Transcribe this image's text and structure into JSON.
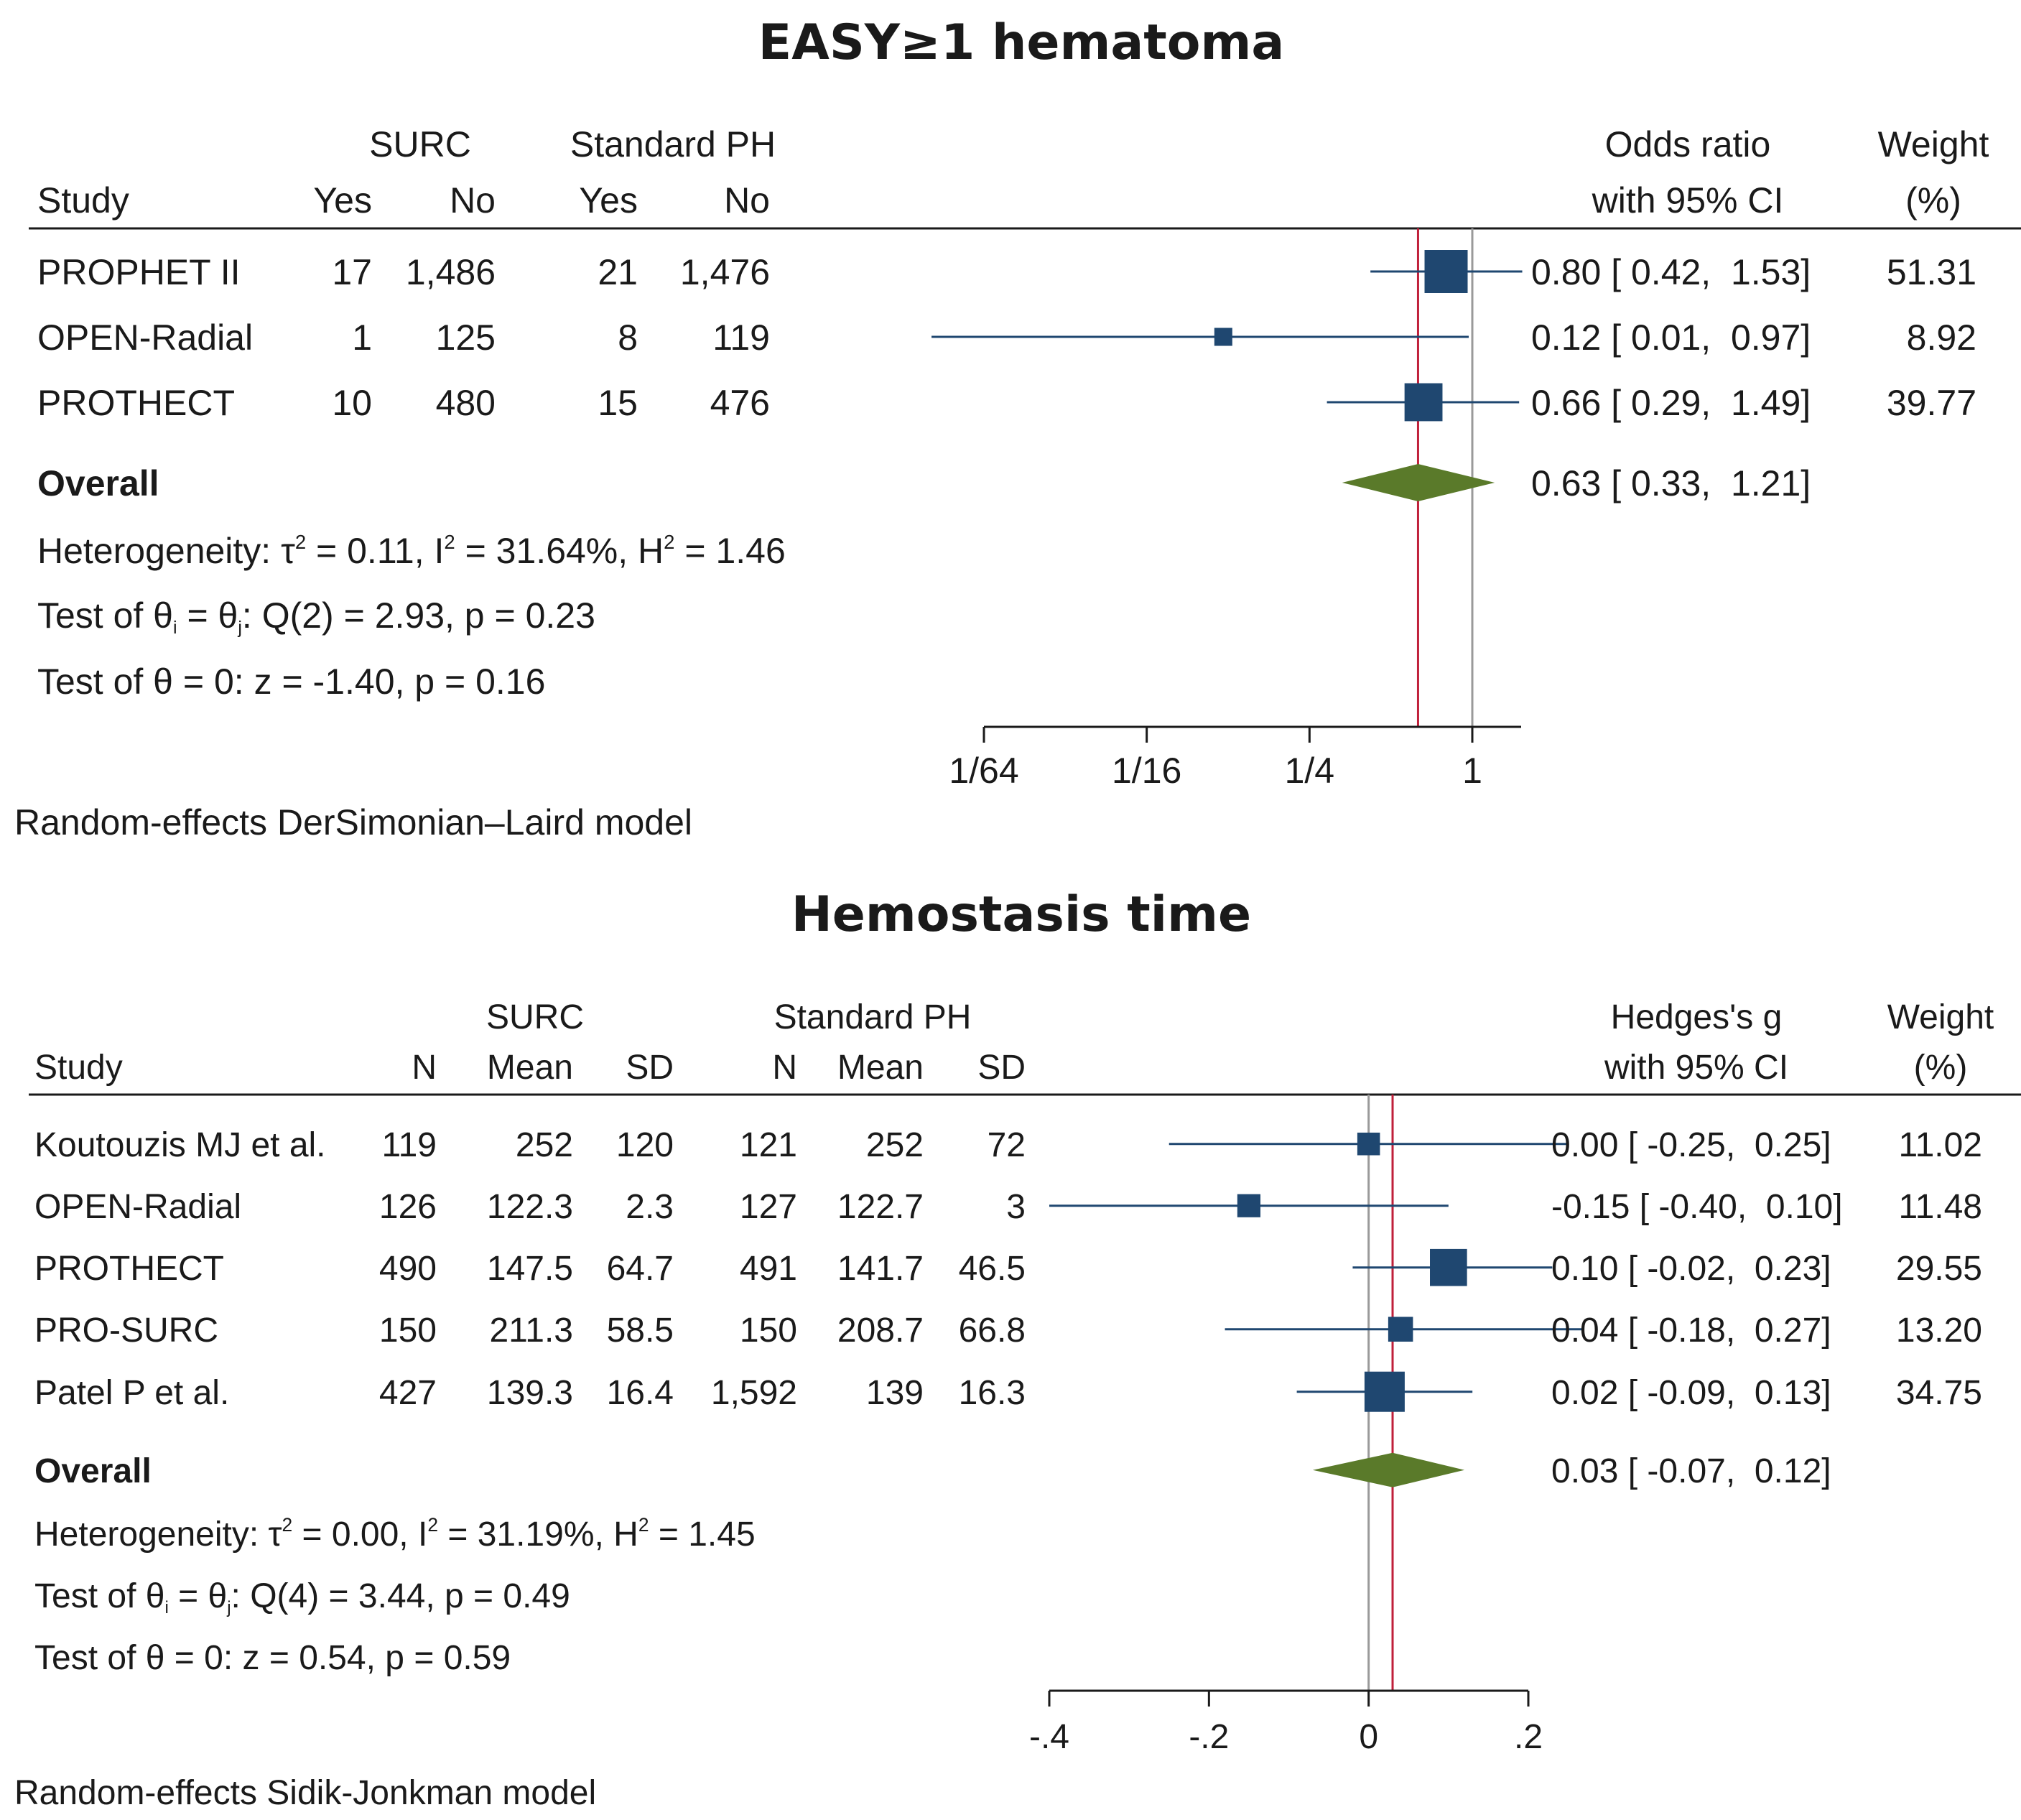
{
  "chart_data": [
    {
      "type": "forest",
      "title": "EASY≥1 hematoma",
      "group_headers": [
        "SURC",
        "Standard PH"
      ],
      "column_headers": [
        "Study",
        "Yes",
        "No",
        "Yes",
        "No"
      ],
      "effect_header": [
        "Odds ratio",
        "with 95% CI"
      ],
      "weight_header": [
        "Weight",
        "(%)"
      ],
      "scale": "log2",
      "xlim": [
        0.0139,
        1.14
      ],
      "xticks": [
        {
          "value": 0.015625,
          "label": "1/64"
        },
        {
          "value": 0.0625,
          "label": "1/16"
        },
        {
          "value": 0.25,
          "label": "1/4"
        },
        {
          "value": 1,
          "label": "1"
        }
      ],
      "null_value": 1,
      "studies": [
        {
          "name": "PROPHET II",
          "cells": [
            "17",
            "1,486",
            "21",
            "1,476"
          ],
          "est": 0.8,
          "lo": 0.42,
          "hi": 1.53,
          "ci_text": "0.80 [ 0.42,  1.53]",
          "weight": 51.31,
          "weight_text": "51.31"
        },
        {
          "name": "OPEN-Radial",
          "cells": [
            "1",
            "125",
            "8",
            "119"
          ],
          "est": 0.12,
          "lo": 0.01,
          "hi": 0.97,
          "ci_text": "0.12 [ 0.01,  0.97]",
          "weight": 8.92,
          "weight_text": "8.92"
        },
        {
          "name": "PROTHECT",
          "cells": [
            "10",
            "480",
            "15",
            "476"
          ],
          "est": 0.66,
          "lo": 0.29,
          "hi": 1.49,
          "ci_text": "0.66 [ 0.29,  1.49]",
          "weight": 39.77,
          "weight_text": "39.77"
        }
      ],
      "overall": {
        "label": "Overall",
        "est": 0.63,
        "lo": 0.33,
        "hi": 1.21,
        "ci_text": "0.63 [ 0.33,  1.21]"
      },
      "heterogeneity": {
        "prefix": "Heterogeneity: τ",
        "tau2": " = 0.11, I",
        "i2": " = 31.64%, H",
        "h2": " = 1.46",
        "sup": "2"
      },
      "test_q": {
        "a": "Test of θ",
        "sub_i": "i",
        "b": " = θ",
        "sub_j": "j",
        "c": ": Q(2) = 2.93, p = 0.23"
      },
      "test_z": "Test of θ = 0: z = -1.40, p = 0.16",
      "model": "Random-effects DerSimonian–Laird model"
    },
    {
      "type": "forest",
      "title": "Hemostasis time",
      "group_headers": [
        "SURC",
        "Standard PH"
      ],
      "column_headers": [
        "Study",
        "N",
        "Mean",
        "SD",
        "N",
        "Mean",
        "SD"
      ],
      "effect_header": [
        "Hedges's g",
        "with 95% CI"
      ],
      "weight_header": [
        "Weight",
        "(%)"
      ],
      "scale": "linear",
      "xlim": [
        -0.4,
        0.27
      ],
      "xticks": [
        {
          "value": -0.4,
          "label": "-.4"
        },
        {
          "value": -0.2,
          "label": "-.2"
        },
        {
          "value": 0,
          "label": "0"
        },
        {
          "value": 0.2,
          "label": ".2"
        }
      ],
      "null_value": 0,
      "studies": [
        {
          "name": "Koutouzis MJ et al.",
          "cells": [
            "119",
            "252",
            "120",
            "121",
            "252",
            "72"
          ],
          "est": 0.0,
          "lo": -0.25,
          "hi": 0.25,
          "ci_text": "0.00 [ -0.25,  0.25]",
          "weight": 11.02,
          "weight_text": "11.02"
        },
        {
          "name": "OPEN-Radial",
          "cells": [
            "126",
            "122.3",
            "2.3",
            "127",
            "122.7",
            "3"
          ],
          "est": -0.15,
          "lo": -0.4,
          "hi": 0.1,
          "ci_text": "-0.15 [ -0.40,  0.10]",
          "weight": 11.48,
          "weight_text": "11.48"
        },
        {
          "name": "PROTHECT",
          "cells": [
            "490",
            "147.5",
            "64.7",
            "491",
            "141.7",
            "46.5"
          ],
          "est": 0.1,
          "lo": -0.02,
          "hi": 0.23,
          "ci_text": "0.10 [ -0.02,  0.23]",
          "weight": 29.55,
          "weight_text": "29.55"
        },
        {
          "name": "PRO-SURC",
          "cells": [
            "150",
            "211.3",
            "58.5",
            "150",
            "208.7",
            "66.8"
          ],
          "est": 0.04,
          "lo": -0.18,
          "hi": 0.27,
          "ci_text": "0.04 [ -0.18,  0.27]",
          "weight": 13.2,
          "weight_text": "13.20"
        },
        {
          "name": "Patel P et al.",
          "cells": [
            "427",
            "139.3",
            "16.4",
            "1,592",
            "139",
            "16.3"
          ],
          "est": 0.02,
          "lo": -0.09,
          "hi": 0.13,
          "ci_text": "0.02 [ -0.09,  0.13]",
          "weight": 34.75,
          "weight_text": "34.75"
        }
      ],
      "overall": {
        "label": "Overall",
        "est": 0.03,
        "lo": -0.07,
        "hi": 0.12,
        "ci_text": "0.03 [ -0.07,  0.12]"
      },
      "heterogeneity": {
        "prefix": "Heterogeneity: τ",
        "tau2": " = 0.00, I",
        "i2": " = 31.19%, H",
        "h2": " = 1.45",
        "sup": "2"
      },
      "test_q": {
        "a": "Test of θ",
        "sub_i": "i",
        "b": " = θ",
        "sub_j": "j",
        "c": ": Q(4) = 3.44, p = 0.49"
      },
      "test_z": "Test of θ = 0: z = 0.54, p = 0.59",
      "model": "Random-effects Sidik-Jonkman model"
    }
  ],
  "colors": {
    "marker": "#1f4770",
    "diamond": "#5a7a2a",
    "overall_line": "#c0203a",
    "null_line": "#9a9a9a",
    "rule": "#1a1a1a"
  }
}
